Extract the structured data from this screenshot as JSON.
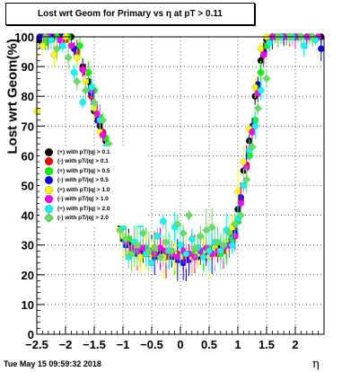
{
  "chart_data": {
    "type": "scatter",
    "title": "Lost wrt Geom for Primary vs   η at pT > 0.11",
    "xlabel": "η",
    "ylabel": "Lost wrt Geom(%)",
    "xlim": [
      -2.5,
      2.5
    ],
    "ylim": [
      0,
      100
    ],
    "x_ticks": [
      -2.5,
      -2,
      -1.5,
      -1,
      -0.5,
      0,
      0.5,
      1,
      1.5,
      2
    ],
    "y_ticks": [
      0,
      10,
      20,
      30,
      40,
      50,
      60,
      70,
      80,
      90,
      100
    ],
    "grid": true,
    "legend_position": "center-left",
    "series": [
      {
        "name": "(+) with pT/|q| > 0.1",
        "color": "#000000",
        "marker": "circle",
        "x": [
          -2.45,
          -2.3,
          -2.1,
          -1.9,
          -1.7,
          -1.6,
          -1.5,
          -1.4,
          -1.3,
          -1.2,
          -1.1,
          -1.0,
          -0.9,
          -0.8,
          -0.7,
          -0.6,
          -0.5,
          -0.4,
          -0.3,
          -0.2,
          -0.1,
          0.0,
          0.1,
          0.2,
          0.3,
          0.4,
          0.5,
          0.6,
          0.7,
          0.8,
          0.9,
          1.0,
          1.1,
          1.2,
          1.3,
          1.4,
          1.5,
          1.6,
          1.8,
          2.0,
          2.2,
          2.45
        ],
        "y": [
          99,
          100,
          100,
          100,
          90,
          85,
          75,
          70,
          65,
          55,
          40,
          32,
          30,
          28,
          27,
          29,
          28,
          27,
          28,
          27,
          26,
          25,
          25,
          27,
          26,
          28,
          27,
          28,
          29,
          30,
          33,
          42,
          55,
          65,
          80,
          92,
          99,
          100,
          100,
          100,
          100,
          100
        ]
      },
      {
        "name": "(-) with pT/|q| > 0.1",
        "color": "#ff0000",
        "marker": "circle",
        "x": [
          -2.4,
          -2.2,
          -2.0,
          -1.8,
          -1.65,
          -1.55,
          -1.45,
          -1.35,
          -1.25,
          -1.15,
          -1.05,
          -0.95,
          -0.85,
          -0.75,
          -0.65,
          -0.55,
          -0.45,
          -0.35,
          -0.25,
          -0.15,
          -0.05,
          0.05,
          0.15,
          0.25,
          0.35,
          0.45,
          0.55,
          0.65,
          0.75,
          0.85,
          0.95,
          1.05,
          1.15,
          1.25,
          1.35,
          1.45,
          1.55,
          1.7,
          1.9,
          2.1,
          2.3
        ],
        "y": [
          100,
          100,
          99,
          95,
          88,
          80,
          74,
          68,
          60,
          50,
          38,
          31,
          29,
          28,
          27,
          28,
          29,
          27,
          26,
          28,
          27,
          26,
          26,
          27,
          28,
          27,
          28,
          27,
          28,
          31,
          35,
          45,
          57,
          68,
          82,
          94,
          99,
          100,
          100,
          100,
          100
        ]
      },
      {
        "name": "(+) with pT/|q| > 0.5",
        "color": "#00ff00",
        "marker": "circle",
        "x": [
          -2.35,
          -2.15,
          -1.95,
          -1.75,
          -1.6,
          -1.5,
          -1.4,
          -1.3,
          -1.2,
          -1.1,
          -1.0,
          -0.9,
          -0.8,
          -0.7,
          -0.6,
          -0.5,
          -0.4,
          -0.3,
          -0.2,
          -0.1,
          0.0,
          0.1,
          0.2,
          0.3,
          0.4,
          0.5,
          0.6,
          0.7,
          0.8,
          0.9,
          1.0,
          1.1,
          1.2,
          1.3,
          1.4,
          1.5,
          1.65,
          1.85,
          2.05,
          2.25
        ],
        "y": [
          98,
          100,
          100,
          97,
          88,
          82,
          73,
          66,
          58,
          48,
          36,
          32,
          30,
          27,
          29,
          27,
          28,
          26,
          28,
          27,
          26,
          27,
          27,
          28,
          27,
          29,
          28,
          27,
          30,
          32,
          38,
          50,
          60,
          72,
          88,
          97,
          100,
          100,
          100,
          100
        ]
      },
      {
        "name": "(-) with pT/|q| > 0.5",
        "color": "#0000ff",
        "marker": "circle",
        "x": [
          -2.45,
          -2.25,
          -2.05,
          -1.85,
          -1.7,
          -1.55,
          -1.45,
          -1.35,
          -1.25,
          -1.15,
          -1.05,
          -0.95,
          -0.85,
          -0.75,
          -0.65,
          -0.55,
          -0.45,
          -0.35,
          -0.25,
          -0.15,
          -0.05,
          0.05,
          0.15,
          0.25,
          0.35,
          0.45,
          0.55,
          0.65,
          0.75,
          0.85,
          0.95,
          1.05,
          1.15,
          1.25,
          1.35,
          1.45,
          1.6,
          1.8,
          2.0,
          2.2,
          2.45
        ],
        "y": [
          100,
          100,
          100,
          96,
          89,
          81,
          72,
          67,
          61,
          49,
          37,
          30,
          28,
          27,
          28,
          27,
          26,
          27,
          28,
          26,
          25,
          24,
          25,
          26,
          27,
          26,
          27,
          28,
          29,
          30,
          34,
          46,
          56,
          70,
          84,
          95,
          100,
          100,
          100,
          100,
          96
        ]
      },
      {
        "name": "(+) with pT/|q| > 1.0",
        "color": "#ffff00",
        "marker": "circle",
        "x": [
          -2.5,
          -2.4,
          -2.2,
          -2.0,
          -1.8,
          -1.65,
          -1.5,
          -1.4,
          -1.3,
          -1.2,
          -1.1,
          -1.0,
          -0.9,
          -0.8,
          -0.7,
          -0.6,
          -0.5,
          -0.4,
          -0.3,
          -0.2,
          -0.1,
          0.0,
          0.1,
          0.2,
          0.3,
          0.4,
          0.5,
          0.6,
          0.7,
          0.8,
          0.9,
          1.0,
          1.1,
          1.2,
          1.3,
          1.4,
          1.5,
          1.7,
          1.9,
          2.1
        ],
        "y": [
          75,
          97,
          94,
          100,
          93,
          85,
          76,
          68,
          62,
          52,
          40,
          33,
          27,
          29,
          26,
          28,
          27,
          29,
          26,
          28,
          27,
          26,
          28,
          26,
          27,
          28,
          26,
          29,
          28,
          31,
          36,
          48,
          58,
          69,
          83,
          96,
          100,
          100,
          100,
          100
        ]
      },
      {
        "name": "(-) with pT/|q| > 1.0",
        "color": "#ff00ff",
        "marker": "circle",
        "x": [
          -2.3,
          -2.1,
          -1.9,
          -1.7,
          -1.55,
          -1.45,
          -1.35,
          -1.25,
          -1.15,
          -1.05,
          -0.95,
          -0.85,
          -0.75,
          -0.65,
          -0.55,
          -0.45,
          -0.35,
          -0.25,
          -0.15,
          -0.05,
          0.05,
          0.15,
          0.25,
          0.35,
          0.45,
          0.55,
          0.65,
          0.75,
          0.85,
          0.95,
          1.05,
          1.15,
          1.25,
          1.35,
          1.45,
          1.6,
          1.8,
          2.0,
          2.2,
          2.4
        ],
        "y": [
          100,
          99,
          97,
          89,
          82,
          74,
          67,
          60,
          51,
          38,
          31,
          29,
          28,
          29,
          28,
          27,
          29,
          28,
          27,
          26,
          28,
          27,
          26,
          28,
          29,
          27,
          28,
          29,
          30,
          33,
          44,
          56,
          68,
          81,
          94,
          100,
          100,
          100,
          100,
          100
        ]
      },
      {
        "name": "(+) with pT/|q| > 2.0",
        "color": "#00ffff",
        "marker": "circle",
        "x": [
          -2.25,
          -2.05,
          -1.85,
          -1.7,
          -1.55,
          -1.4,
          -1.3,
          -1.2,
          -1.1,
          -1.0,
          -0.9,
          -0.8,
          -0.7,
          -0.6,
          -0.5,
          -0.4,
          -0.3,
          -0.2,
          -0.1,
          0.0,
          0.1,
          0.2,
          0.3,
          0.4,
          0.5,
          0.6,
          0.7,
          0.8,
          0.9,
          1.0,
          1.1,
          1.2,
          1.3,
          1.4,
          1.55,
          1.75,
          1.95,
          2.15,
          2.35
        ],
        "y": [
          99,
          97,
          88,
          78,
          83,
          72,
          63,
          55,
          44,
          36,
          26,
          31,
          37,
          27,
          24,
          33,
          38,
          28,
          36,
          30,
          27,
          32,
          29,
          26,
          28,
          31,
          28,
          35,
          30,
          39,
          50,
          62,
          70,
          82,
          98,
          100,
          100,
          97,
          99
        ]
      },
      {
        "name": "(-) with pT/|q| > 2.0",
        "color": "#66dd66",
        "marker": "diamond",
        "x": [
          -2.35,
          -2.15,
          -1.95,
          -1.8,
          -1.65,
          -1.5,
          -1.35,
          -1.25,
          -1.15,
          -1.05,
          -0.95,
          -0.85,
          -0.75,
          -0.65,
          -0.55,
          -0.45,
          -0.35,
          -0.25,
          -0.15,
          -0.05,
          0.05,
          0.15,
          0.25,
          0.35,
          0.45,
          0.55,
          0.65,
          0.75,
          0.85,
          0.95,
          1.05,
          1.15,
          1.25,
          1.35,
          1.5,
          1.7,
          1.9,
          2.1,
          2.3
        ],
        "y": [
          100,
          96,
          93,
          85,
          82,
          78,
          72,
          64,
          47,
          35,
          32,
          27,
          30,
          34,
          28,
          29,
          26,
          31,
          28,
          37,
          34,
          40,
          29,
          33,
          35,
          36,
          31,
          30,
          34,
          37,
          40,
          52,
          63,
          76,
          86,
          100,
          100,
          100,
          100
        ]
      }
    ]
  },
  "footer": {
    "datestamp": "Tue May 15 09:59:32 2018"
  }
}
